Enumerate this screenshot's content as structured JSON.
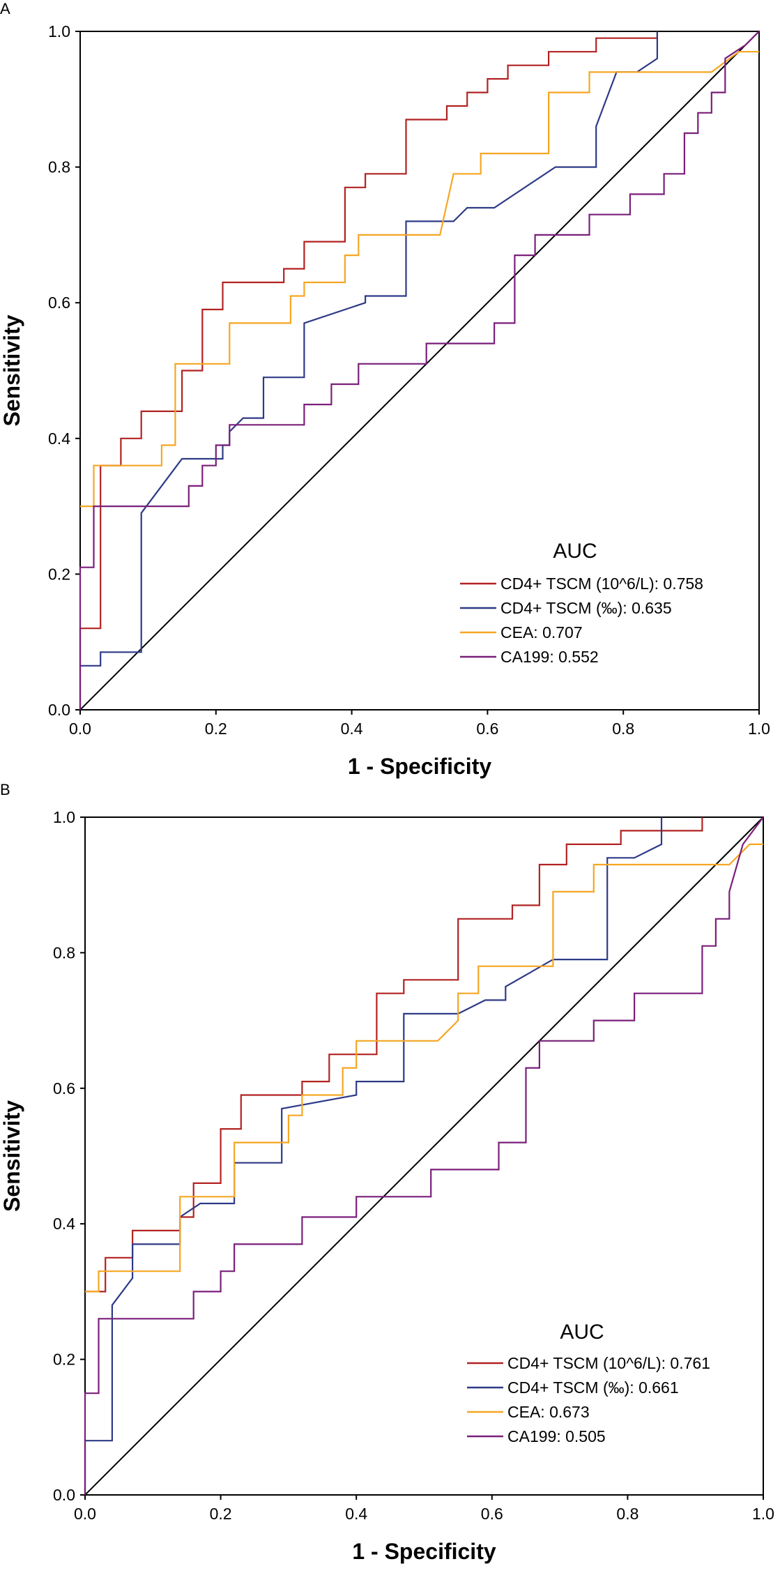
{
  "chart_data": [
    {
      "panel": "A",
      "type": "line",
      "xlabel": "1 - Specificity",
      "ylabel": "Sensitivity",
      "xlim": [
        0,
        1
      ],
      "ylim": [
        0,
        1
      ],
      "xticks": [
        "0.0",
        "0.2",
        "0.4",
        "0.6",
        "0.8",
        "1.0"
      ],
      "yticks": [
        "0.0",
        "0.2",
        "0.4",
        "0.6",
        "0.8",
        "1.0"
      ],
      "legend_title": "AUC",
      "legend_position": "bottom-right",
      "reference_line": true,
      "series": [
        {
          "name": "CD4+ TSCM (10^6/L): 0.758",
          "color": "#b22222",
          "points": [
            [
              0,
              0
            ],
            [
              0,
              0.12
            ],
            [
              0.03,
              0.12
            ],
            [
              0.03,
              0.36
            ],
            [
              0.06,
              0.36
            ],
            [
              0.06,
              0.4
            ],
            [
              0.09,
              0.4
            ],
            [
              0.09,
              0.44
            ],
            [
              0.15,
              0.44
            ],
            [
              0.15,
              0.5
            ],
            [
              0.18,
              0.5
            ],
            [
              0.18,
              0.59
            ],
            [
              0.21,
              0.59
            ],
            [
              0.21,
              0.63
            ],
            [
              0.3,
              0.63
            ],
            [
              0.3,
              0.65
            ],
            [
              0.33,
              0.65
            ],
            [
              0.33,
              0.69
            ],
            [
              0.39,
              0.69
            ],
            [
              0.39,
              0.77
            ],
            [
              0.42,
              0.77
            ],
            [
              0.42,
              0.79
            ],
            [
              0.48,
              0.79
            ],
            [
              0.48,
              0.87
            ],
            [
              0.54,
              0.87
            ],
            [
              0.54,
              0.89
            ],
            [
              0.57,
              0.89
            ],
            [
              0.57,
              0.91
            ],
            [
              0.6,
              0.91
            ],
            [
              0.6,
              0.93
            ],
            [
              0.63,
              0.93
            ],
            [
              0.63,
              0.95
            ],
            [
              0.69,
              0.95
            ],
            [
              0.69,
              0.97
            ],
            [
              0.76,
              0.97
            ],
            [
              0.76,
              0.99
            ],
            [
              0.85,
              0.99
            ],
            [
              0.85,
              1.0
            ]
          ]
        },
        {
          "name": "CD4+ TSCM (‰): 0.635",
          "color": "#2e3a87",
          "points": [
            [
              0,
              0.065
            ],
            [
              0.03,
              0.065
            ],
            [
              0.03,
              0.085
            ],
            [
              0.09,
              0.085
            ],
            [
              0.09,
              0.29
            ],
            [
              0.15,
              0.37
            ],
            [
              0.21,
              0.37
            ],
            [
              0.21,
              0.39
            ],
            [
              0.22,
              0.39
            ],
            [
              0.22,
              0.41
            ],
            [
              0.24,
              0.43
            ],
            [
              0.27,
              0.43
            ],
            [
              0.27,
              0.49
            ],
            [
              0.33,
              0.49
            ],
            [
              0.33,
              0.57
            ],
            [
              0.42,
              0.6
            ],
            [
              0.42,
              0.61
            ],
            [
              0.48,
              0.61
            ],
            [
              0.48,
              0.72
            ],
            [
              0.55,
              0.72
            ],
            [
              0.57,
              0.74
            ],
            [
              0.61,
              0.74
            ],
            [
              0.7,
              0.8
            ],
            [
              0.76,
              0.8
            ],
            [
              0.76,
              0.86
            ],
            [
              0.79,
              0.94
            ],
            [
              0.82,
              0.94
            ],
            [
              0.85,
              0.96
            ],
            [
              0.85,
              1.0
            ]
          ]
        },
        {
          "name": "CEA: 0.707",
          "color": "#f5a623",
          "points": [
            [
              0,
              0.3
            ],
            [
              0.02,
              0.3
            ],
            [
              0.02,
              0.36
            ],
            [
              0.12,
              0.36
            ],
            [
              0.12,
              0.39
            ],
            [
              0.14,
              0.39
            ],
            [
              0.14,
              0.51
            ],
            [
              0.22,
              0.51
            ],
            [
              0.22,
              0.57
            ],
            [
              0.31,
              0.57
            ],
            [
              0.31,
              0.61
            ],
            [
              0.33,
              0.61
            ],
            [
              0.33,
              0.63
            ],
            [
              0.39,
              0.63
            ],
            [
              0.39,
              0.67
            ],
            [
              0.41,
              0.67
            ],
            [
              0.41,
              0.7
            ],
            [
              0.53,
              0.7
            ],
            [
              0.55,
              0.79
            ],
            [
              0.59,
              0.79
            ],
            [
              0.59,
              0.82
            ],
            [
              0.69,
              0.82
            ],
            [
              0.69,
              0.91
            ],
            [
              0.75,
              0.91
            ],
            [
              0.75,
              0.94
            ],
            [
              0.93,
              0.94
            ],
            [
              0.97,
              0.97
            ],
            [
              1.0,
              0.97
            ]
          ]
        },
        {
          "name": "CA199: 0.552",
          "color": "#7a1f7a",
          "points": [
            [
              0,
              0
            ],
            [
              0,
              0.21
            ],
            [
              0.02,
              0.21
            ],
            [
              0.02,
              0.3
            ],
            [
              0.16,
              0.3
            ],
            [
              0.16,
              0.33
            ],
            [
              0.18,
              0.33
            ],
            [
              0.18,
              0.36
            ],
            [
              0.2,
              0.36
            ],
            [
              0.2,
              0.39
            ],
            [
              0.22,
              0.39
            ],
            [
              0.22,
              0.42
            ],
            [
              0.33,
              0.42
            ],
            [
              0.33,
              0.45
            ],
            [
              0.37,
              0.45
            ],
            [
              0.37,
              0.48
            ],
            [
              0.41,
              0.48
            ],
            [
              0.41,
              0.51
            ],
            [
              0.51,
              0.51
            ],
            [
              0.51,
              0.54
            ],
            [
              0.61,
              0.54
            ],
            [
              0.61,
              0.57
            ],
            [
              0.64,
              0.57
            ],
            [
              0.64,
              0.67
            ],
            [
              0.67,
              0.67
            ],
            [
              0.67,
              0.7
            ],
            [
              0.75,
              0.7
            ],
            [
              0.75,
              0.73
            ],
            [
              0.81,
              0.73
            ],
            [
              0.81,
              0.76
            ],
            [
              0.86,
              0.76
            ],
            [
              0.86,
              0.79
            ],
            [
              0.89,
              0.79
            ],
            [
              0.89,
              0.85
            ],
            [
              0.91,
              0.85
            ],
            [
              0.91,
              0.88
            ],
            [
              0.93,
              0.88
            ],
            [
              0.93,
              0.91
            ],
            [
              0.95,
              0.91
            ],
            [
              0.95,
              0.96
            ],
            [
              0.98,
              0.98
            ],
            [
              1.0,
              1.0
            ]
          ]
        }
      ]
    },
    {
      "panel": "B",
      "type": "line",
      "xlabel": "1 - Specificity",
      "ylabel": "Sensitivity",
      "xlim": [
        0,
        1
      ],
      "ylim": [
        0,
        1
      ],
      "xticks": [
        "0.0",
        "0.2",
        "0.4",
        "0.6",
        "0.8",
        "1.0"
      ],
      "yticks": [
        "0.0",
        "0.2",
        "0.4",
        "0.6",
        "0.8",
        "1.0"
      ],
      "legend_title": "AUC",
      "legend_position": "bottom-right",
      "reference_line": true,
      "series": [
        {
          "name": "CD4+ TSCM (10^6/L): 0.761",
          "color": "#b22222",
          "points": [
            [
              0,
              0.3
            ],
            [
              0.03,
              0.3
            ],
            [
              0.03,
              0.35
            ],
            [
              0.07,
              0.35
            ],
            [
              0.07,
              0.39
            ],
            [
              0.14,
              0.39
            ],
            [
              0.14,
              0.41
            ],
            [
              0.16,
              0.41
            ],
            [
              0.16,
              0.46
            ],
            [
              0.2,
              0.46
            ],
            [
              0.2,
              0.54
            ],
            [
              0.23,
              0.54
            ],
            [
              0.23,
              0.59
            ],
            [
              0.32,
              0.59
            ],
            [
              0.32,
              0.61
            ],
            [
              0.36,
              0.61
            ],
            [
              0.36,
              0.65
            ],
            [
              0.43,
              0.65
            ],
            [
              0.43,
              0.74
            ],
            [
              0.47,
              0.74
            ],
            [
              0.47,
              0.76
            ],
            [
              0.55,
              0.76
            ],
            [
              0.55,
              0.85
            ],
            [
              0.63,
              0.85
            ],
            [
              0.63,
              0.87
            ],
            [
              0.67,
              0.87
            ],
            [
              0.67,
              0.93
            ],
            [
              0.71,
              0.93
            ],
            [
              0.71,
              0.96
            ],
            [
              0.79,
              0.96
            ],
            [
              0.79,
              0.98
            ],
            [
              0.91,
              0.98
            ],
            [
              0.91,
              1.0
            ]
          ]
        },
        {
          "name": "CD4+ TSCM (‰): 0.661",
          "color": "#2e3a87",
          "points": [
            [
              0,
              0
            ],
            [
              0,
              0.08
            ],
            [
              0.04,
              0.08
            ],
            [
              0.04,
              0.28
            ],
            [
              0.07,
              0.32
            ],
            [
              0.07,
              0.37
            ],
            [
              0.14,
              0.37
            ],
            [
              0.14,
              0.41
            ],
            [
              0.17,
              0.43
            ],
            [
              0.22,
              0.43
            ],
            [
              0.22,
              0.49
            ],
            [
              0.29,
              0.49
            ],
            [
              0.29,
              0.57
            ],
            [
              0.4,
              0.59
            ],
            [
              0.4,
              0.61
            ],
            [
              0.47,
              0.61
            ],
            [
              0.47,
              0.71
            ],
            [
              0.55,
              0.71
            ],
            [
              0.59,
              0.73
            ],
            [
              0.62,
              0.73
            ],
            [
              0.62,
              0.75
            ],
            [
              0.69,
              0.79
            ],
            [
              0.77,
              0.79
            ],
            [
              0.77,
              0.94
            ],
            [
              0.81,
              0.94
            ],
            [
              0.85,
              0.96
            ],
            [
              0.85,
              1.0
            ]
          ]
        },
        {
          "name": "CEA: 0.673",
          "color": "#f5a623",
          "points": [
            [
              0,
              0.3
            ],
            [
              0.02,
              0.3
            ],
            [
              0.02,
              0.33
            ],
            [
              0.14,
              0.33
            ],
            [
              0.14,
              0.44
            ],
            [
              0.22,
              0.44
            ],
            [
              0.22,
              0.52
            ],
            [
              0.3,
              0.52
            ],
            [
              0.3,
              0.56
            ],
            [
              0.32,
              0.56
            ],
            [
              0.32,
              0.59
            ],
            [
              0.38,
              0.59
            ],
            [
              0.38,
              0.63
            ],
            [
              0.4,
              0.63
            ],
            [
              0.4,
              0.67
            ],
            [
              0.52,
              0.67
            ],
            [
              0.55,
              0.7
            ],
            [
              0.55,
              0.74
            ],
            [
              0.58,
              0.74
            ],
            [
              0.58,
              0.78
            ],
            [
              0.69,
              0.78
            ],
            [
              0.69,
              0.89
            ],
            [
              0.75,
              0.89
            ],
            [
              0.75,
              0.93
            ],
            [
              0.95,
              0.93
            ],
            [
              0.98,
              0.96
            ],
            [
              1.0,
              0.96
            ]
          ]
        },
        {
          "name": "CA199: 0.505",
          "color": "#7a1f7a",
          "points": [
            [
              0,
              0
            ],
            [
              0,
              0.15
            ],
            [
              0.02,
              0.15
            ],
            [
              0.02,
              0.26
            ],
            [
              0.16,
              0.26
            ],
            [
              0.16,
              0.3
            ],
            [
              0.2,
              0.3
            ],
            [
              0.2,
              0.33
            ],
            [
              0.22,
              0.33
            ],
            [
              0.22,
              0.37
            ],
            [
              0.32,
              0.37
            ],
            [
              0.32,
              0.41
            ],
            [
              0.4,
              0.41
            ],
            [
              0.4,
              0.44
            ],
            [
              0.51,
              0.44
            ],
            [
              0.51,
              0.48
            ],
            [
              0.61,
              0.48
            ],
            [
              0.61,
              0.52
            ],
            [
              0.65,
              0.52
            ],
            [
              0.65,
              0.63
            ],
            [
              0.67,
              0.63
            ],
            [
              0.67,
              0.67
            ],
            [
              0.75,
              0.67
            ],
            [
              0.75,
              0.7
            ],
            [
              0.81,
              0.7
            ],
            [
              0.81,
              0.74
            ],
            [
              0.91,
              0.74
            ],
            [
              0.91,
              0.81
            ],
            [
              0.93,
              0.81
            ],
            [
              0.93,
              0.85
            ],
            [
              0.95,
              0.85
            ],
            [
              0.95,
              0.89
            ],
            [
              0.97,
              0.96
            ],
            [
              1.0,
              1.0
            ]
          ]
        }
      ]
    }
  ]
}
